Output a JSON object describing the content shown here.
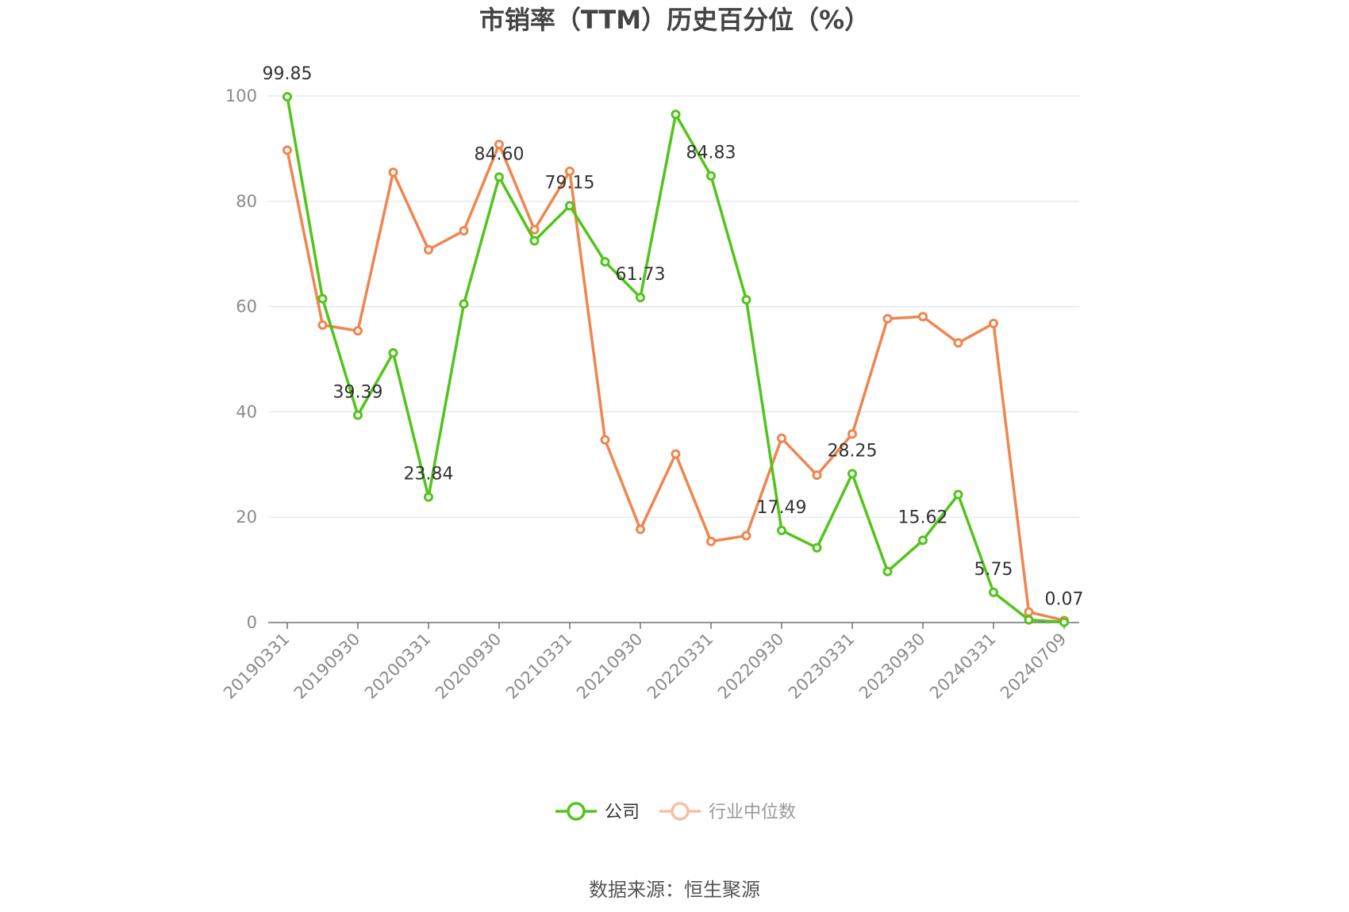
{
  "chart_data": {
    "type": "line",
    "title": "市销率（TTM）历史百分位（%）",
    "source": "数据来源：恒生聚源",
    "ylim": [
      0,
      100
    ],
    "yticks": [
      0,
      20,
      40,
      60,
      80,
      100
    ],
    "grid": true,
    "legend_placement": "bottom-center",
    "tick_labels": [
      "20190331",
      "20190930",
      "20200331",
      "20200930",
      "20210331",
      "20210930",
      "20220331",
      "20220930",
      "20230331",
      "20230930",
      "20240331",
      "20240709"
    ],
    "x": [
      "20190331",
      "20190630",
      "20190930",
      "20191231",
      "20200331",
      "20200630",
      "20200930",
      "20201231",
      "20210331",
      "20210630",
      "20210930",
      "20211231",
      "20220331",
      "20220630",
      "20220930",
      "20221231",
      "20230331",
      "20230630",
      "20230930",
      "20231231",
      "20240331",
      "20240630",
      "20240709"
    ],
    "series": [
      {
        "name": "公司",
        "color": "#52c41a",
        "values": [
          99.85,
          61.5,
          39.39,
          51.2,
          23.84,
          60.5,
          84.6,
          72.5,
          79.15,
          68.5,
          61.73,
          96.5,
          84.83,
          61.3,
          17.49,
          14.2,
          28.25,
          9.7,
          15.62,
          24.3,
          5.75,
          0.5,
          0.07
        ],
        "labels": {
          "0": "99.85",
          "2": "39.39",
          "4": "23.84",
          "6": "84.60",
          "8": "79.15",
          "10": "61.73",
          "12": "84.83",
          "14": "17.49",
          "16": "28.25",
          "18": "15.62",
          "20": "5.75",
          "22": "0.07"
        }
      },
      {
        "name": "行业中位数",
        "color": "#f0854e",
        "values": [
          89.7,
          56.5,
          55.4,
          85.5,
          70.8,
          74.4,
          90.8,
          74.6,
          85.7,
          34.7,
          17.7,
          32.0,
          15.4,
          16.5,
          35.0,
          28.0,
          35.8,
          57.7,
          58.1,
          53.1,
          56.8,
          2.0,
          0.4
        ]
      }
    ]
  }
}
